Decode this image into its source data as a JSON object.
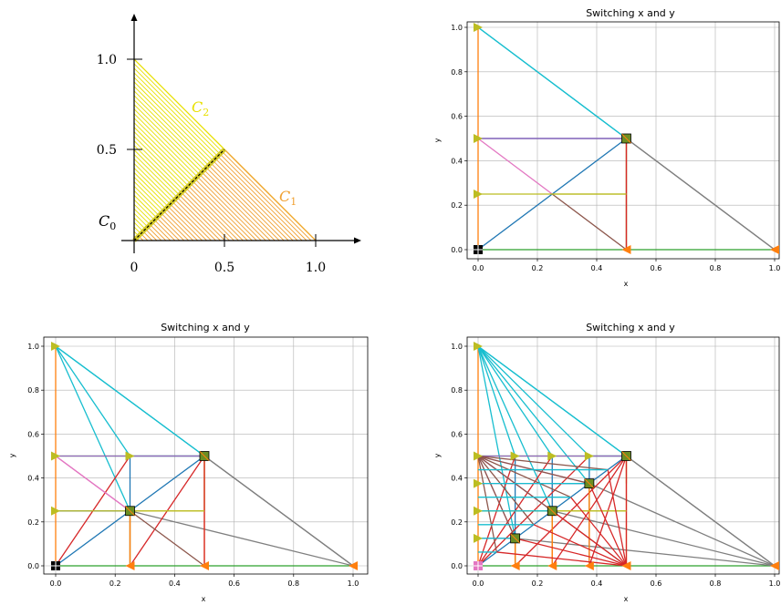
{
  "colors": {
    "blue": "#1f77b4",
    "orange": "#ff7f0e",
    "green": "#2ca02c",
    "red": "#d62728",
    "purple": "#9467bd",
    "brown": "#8c564b",
    "pink": "#e377c2",
    "gray": "#7f7f7f",
    "olive": "#bcbd22",
    "cyan": "#17becf",
    "yellow": "#e8e000",
    "sketch_orange": "#f0a030"
  },
  "sketch": {
    "x_ticks": [
      "0",
      "0.5",
      "1.0"
    ],
    "y_ticks": [
      "0.5",
      "1.0"
    ],
    "labels": {
      "c0": "C",
      "c0_sub": "0",
      "c1": "C",
      "c1_sub": "1",
      "c2": "C",
      "c2_sub": "2"
    }
  },
  "chart_data": [
    {
      "type": "line",
      "title": "Switching x and y",
      "xlabel": "x",
      "ylabel": "y",
      "xlim": [
        -0.04,
        1.02
      ],
      "ylim": [
        -0.04,
        1.05
      ],
      "xticks": [
        0.0,
        0.2,
        0.4,
        0.6,
        0.8,
        1.0
      ],
      "yticks": [
        0.0,
        0.2,
        0.4,
        0.6,
        0.8,
        1.0
      ],
      "grid": true,
      "depth": 1
    },
    {
      "type": "line",
      "title": "Switching x and y",
      "xlabel": "x",
      "ylabel": "y",
      "xlim": [
        -0.04,
        1.02
      ],
      "ylim": [
        -0.04,
        1.05
      ],
      "xticks": [
        0.0,
        0.2,
        0.4,
        0.6,
        0.8,
        1.0
      ],
      "yticks": [
        0.0,
        0.2,
        0.4,
        0.6,
        0.8,
        1.0
      ],
      "grid": true,
      "depth": 2
    },
    {
      "type": "line",
      "title": "Switching x and y",
      "xlabel": "x",
      "ylabel": "y",
      "xlim": [
        -0.04,
        1.02
      ],
      "ylim": [
        -0.04,
        1.05
      ],
      "xticks": [
        0.0,
        0.2,
        0.4,
        0.6,
        0.8,
        1.0
      ],
      "yticks": [
        0.0,
        0.2,
        0.4,
        0.6,
        0.8,
        1.0
      ],
      "grid": true,
      "depth": 3
    }
  ]
}
